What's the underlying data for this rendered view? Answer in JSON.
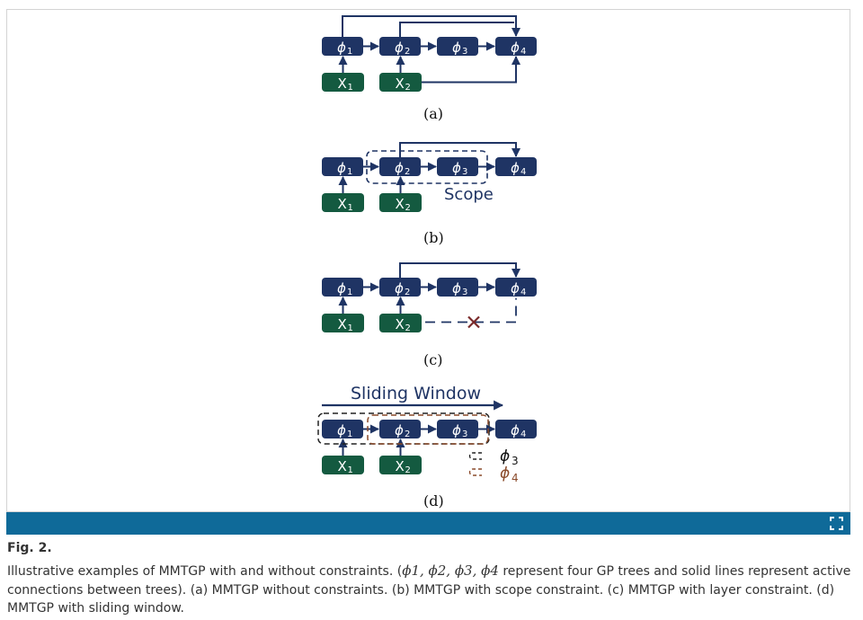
{
  "panels": {
    "a": {
      "label": "(a)"
    },
    "b": {
      "label": "(b)",
      "scope_text": "Scope"
    },
    "c": {
      "label": "(c)",
      "cross_mark": "×"
    },
    "d": {
      "label": "(d)",
      "window_title": "Sliding Window",
      "legend": [
        "ϕ3",
        "ϕ4"
      ]
    }
  },
  "nodes": {
    "phi": [
      {
        "sym": "ϕ",
        "sub": "1"
      },
      {
        "sym": "ϕ",
        "sub": "2"
      },
      {
        "sym": "ϕ",
        "sub": "3"
      },
      {
        "sym": "ϕ",
        "sub": "4"
      }
    ],
    "x": [
      {
        "sym": "X",
        "sub": "1"
      },
      {
        "sym": "X",
        "sub": "2"
      }
    ]
  },
  "colors": {
    "phi_node": "#1f3464",
    "x_node": "#145a40",
    "arrow": "#1f3464",
    "window_black": "#222222",
    "window_brown": "#8a4a2a",
    "cross": "#7a2a2a",
    "bar": "#0f6a99"
  },
  "figure": {
    "fig_label": "Fig. 2.",
    "caption_parts": [
      "Illustrative examples of MMTGP with and without constraints. (",
      "ϕ1, ϕ2, ϕ3, ϕ4",
      " represent four GP trees and solid lines represent active connections between trees). (a) MMTGP without constraints. (b) MMTGP with scope constraint. (c) MMTGP with layer constraint. (d) MMTGP with sliding window."
    ]
  },
  "icons": {
    "expand": "expand-icon"
  }
}
